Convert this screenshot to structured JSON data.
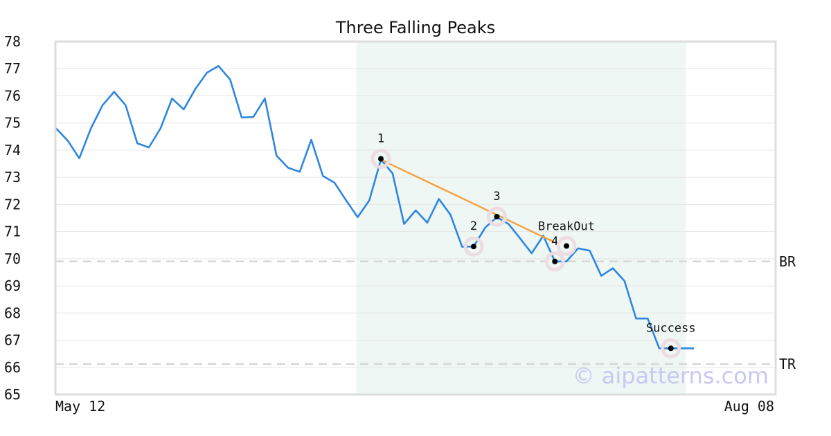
{
  "chart_data": {
    "type": "line",
    "title": "Three Falling Peaks",
    "xlabel": "",
    "ylabel": "",
    "ylim": [
      65,
      78
    ],
    "y_ticks": [
      65,
      66,
      67,
      68,
      69,
      70,
      71,
      72,
      73,
      74,
      75,
      76,
      77,
      78
    ],
    "x_tick_labels": [
      "May 12",
      "Aug 08"
    ],
    "grid": "horizontal",
    "colors": {
      "series": "#2e86de",
      "trendline": "#f5a142",
      "pattern_band": "#eef7f3",
      "marker_halo": "#ecdde3",
      "marker_dot": "#000000",
      "level_line": "#d6d6d6",
      "watermark": "#c8c8f4"
    },
    "series": [
      {
        "values": [
          74.8,
          74.35,
          73.7,
          74.8,
          75.65,
          76.15,
          75.65,
          74.25,
          74.1,
          74.8,
          75.9,
          75.5,
          76.25,
          76.85,
          77.1,
          76.6,
          75.2,
          75.22,
          75.9,
          73.8,
          73.35,
          73.2,
          74.38,
          73.05,
          72.8,
          72.15,
          71.53,
          72.15,
          73.65,
          73.15,
          71.28,
          71.78,
          71.33,
          72.2,
          71.62,
          70.44,
          70.45,
          71.15,
          71.53,
          71.28,
          70.75,
          70.2,
          70.85,
          69.9,
          69.9,
          70.38,
          70.3,
          69.37,
          69.65,
          69.18,
          67.8,
          67.8,
          66.7,
          66.7,
          66.7,
          66.7
        ]
      }
    ],
    "pattern_band": {
      "start_index": 26,
      "end_index": 55
    },
    "trendline": {
      "from_index": 28,
      "to_index": 43,
      "from_value": 73.65,
      "to_value": 70.6
    },
    "levels": [
      {
        "label": "BR",
        "value": 69.9
      },
      {
        "label": "TR",
        "value": 66.12
      }
    ],
    "annotations": [
      {
        "label": "1",
        "index": 28,
        "value": 73.68
      },
      {
        "label": "2",
        "index": 36,
        "value": 70.45
      },
      {
        "label": "3",
        "index": 38,
        "value": 71.55
      },
      {
        "label": "4",
        "index": 43,
        "value": 69.9
      },
      {
        "label": "BreakOut",
        "index": 44,
        "value": 70.47
      },
      {
        "label": "Success",
        "index": 53,
        "value": 66.7
      }
    ],
    "watermark": "© aipatterns.com"
  }
}
